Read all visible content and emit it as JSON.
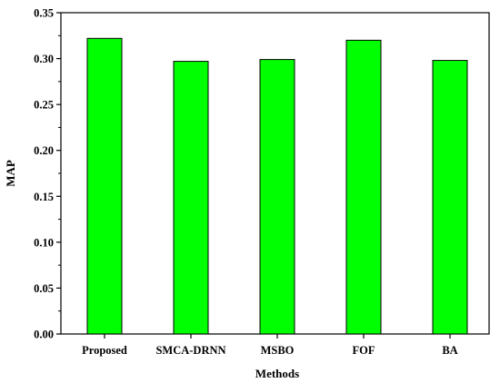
{
  "chart_data": {
    "type": "bar",
    "title": "",
    "xlabel": "Methods",
    "ylabel": "MAP",
    "categories": [
      "Proposed",
      "SMCA-DRNN",
      "MSBO",
      "FOF",
      "BA"
    ],
    "values": [
      0.322,
      0.297,
      0.299,
      0.32,
      0.298
    ],
    "ylim": [
      0,
      0.35
    ],
    "yticks": [
      "0.00",
      "0.05",
      "0.10",
      "0.15",
      "0.20",
      "0.25",
      "0.30",
      "0.35"
    ],
    "bar_color": "#00ff00",
    "bar_edge_color": "#000000",
    "grid": false,
    "legend": "none"
  }
}
